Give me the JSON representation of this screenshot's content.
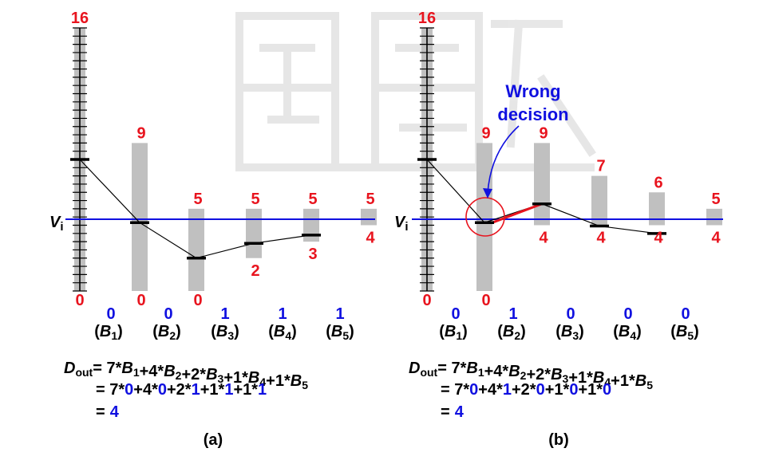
{
  "panels": [
    {
      "id": "a",
      "caption": "(a)",
      "vi_label": "V",
      "vi_sub": "i",
      "ref": {
        "top": "16",
        "bottom": "0"
      },
      "bars": [
        {
          "top": "9",
          "bottom": "0"
        },
        {
          "top": "5",
          "bottom": "0"
        },
        {
          "top": "5",
          "bottom": "2"
        },
        {
          "top": "5",
          "bottom": "3"
        },
        {
          "top": "5",
          "bottom": "4"
        }
      ],
      "bits": [
        "0",
        "0",
        "1",
        "1",
        "1"
      ],
      "formula_coeffs": [
        "7",
        "4",
        "2",
        "1",
        "1"
      ],
      "result": "4"
    },
    {
      "id": "b",
      "caption": "(b)",
      "vi_label": "V",
      "vi_sub": "i",
      "annotation": {
        "line1": "Wrong",
        "line2": "decision"
      },
      "ref": {
        "top": "16",
        "bottom": "0"
      },
      "bars": [
        {
          "top": "9",
          "bottom": "0"
        },
        {
          "top": "9",
          "bottom": "4"
        },
        {
          "top": "7",
          "bottom": "4"
        },
        {
          "top": "6",
          "bottom": "4"
        },
        {
          "top": "5",
          "bottom": "4"
        }
      ],
      "bits": [
        "0",
        "1",
        "0",
        "0",
        "0"
      ],
      "formula_coeffs": [
        "7",
        "4",
        "2",
        "1",
        "1"
      ],
      "result": "4"
    }
  ],
  "bit_names": [
    "B1",
    "B2",
    "B3",
    "B4",
    "B5"
  ],
  "formula": {
    "lhs_var": "D",
    "lhs_sub": "out",
    "eq": "=",
    "star": "*",
    "plus": "+"
  },
  "colors": {
    "value_red": "#e8141e",
    "bit_blue": "#1010e0",
    "bar_grey": "#c0c0c0",
    "vi_line": "#1010e0",
    "wrong_path": "#e8141e"
  }
}
